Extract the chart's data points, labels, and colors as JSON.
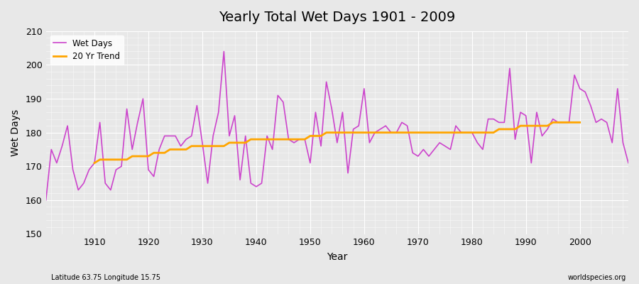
{
  "title": "Yearly Total Wet Days 1901 - 2009",
  "xlabel": "Year",
  "ylabel": "Wet Days",
  "footnote_left": "Latitude 63.75 Longitude 15.75",
  "footnote_right": "worldspecies.org",
  "line_color": "#cc44cc",
  "trend_color": "#ffa500",
  "bg_color": "#e8e8e8",
  "plot_bg_color": "#e8e8e8",
  "ylim": [
    150,
    210
  ],
  "xlim": [
    1901,
    2009
  ],
  "yticks": [
    150,
    160,
    170,
    180,
    190,
    200,
    210
  ],
  "xticks": [
    1910,
    1920,
    1930,
    1940,
    1950,
    1960,
    1970,
    1980,
    1990,
    2000
  ],
  "years": [
    1901,
    1902,
    1903,
    1904,
    1905,
    1906,
    1907,
    1908,
    1909,
    1910,
    1911,
    1912,
    1913,
    1914,
    1915,
    1916,
    1917,
    1918,
    1919,
    1920,
    1921,
    1922,
    1923,
    1924,
    1925,
    1926,
    1927,
    1928,
    1929,
    1930,
    1931,
    1932,
    1933,
    1934,
    1935,
    1936,
    1937,
    1938,
    1939,
    1940,
    1941,
    1942,
    1943,
    1944,
    1945,
    1946,
    1947,
    1948,
    1949,
    1950,
    1951,
    1952,
    1953,
    1954,
    1955,
    1956,
    1957,
    1958,
    1959,
    1960,
    1961,
    1962,
    1963,
    1964,
    1965,
    1966,
    1967,
    1968,
    1969,
    1970,
    1971,
    1972,
    1973,
    1974,
    1975,
    1976,
    1977,
    1978,
    1979,
    1980,
    1981,
    1982,
    1983,
    1984,
    1985,
    1986,
    1987,
    1988,
    1989,
    1990,
    1991,
    1992,
    1993,
    1994,
    1995,
    1996,
    1997,
    1998,
    1999,
    2000,
    2001,
    2002,
    2003,
    2004,
    2005,
    2006,
    2007,
    2008,
    2009
  ],
  "wet_days": [
    160,
    175,
    171,
    176,
    182,
    169,
    163,
    165,
    169,
    171,
    183,
    165,
    163,
    169,
    170,
    187,
    175,
    183,
    190,
    169,
    167,
    175,
    179,
    179,
    179,
    176,
    178,
    179,
    188,
    177,
    165,
    179,
    186,
    204,
    179,
    185,
    166,
    179,
    165,
    164,
    165,
    179,
    175,
    191,
    189,
    178,
    177,
    178,
    178,
    171,
    186,
    176,
    195,
    187,
    177,
    186,
    168,
    181,
    182,
    193,
    177,
    180,
    181,
    182,
    180,
    180,
    183,
    182,
    174,
    173,
    175,
    173,
    175,
    177,
    176,
    175,
    182,
    180,
    180,
    180,
    177,
    175,
    184,
    184,
    183,
    183,
    199,
    178,
    186,
    185,
    171,
    186,
    179,
    181,
    184,
    183,
    183,
    183,
    197,
    193,
    192,
    188,
    183,
    184,
    183,
    177,
    193,
    177,
    171
  ],
  "trend": [
    null,
    null,
    null,
    null,
    null,
    null,
    null,
    null,
    null,
    171,
    172,
    172,
    172,
    172,
    172,
    172,
    173,
    173,
    173,
    173,
    174,
    174,
    174,
    175,
    175,
    175,
    175,
    176,
    176,
    176,
    176,
    176,
    176,
    176,
    177,
    177,
    177,
    177,
    178,
    178,
    178,
    178,
    178,
    178,
    178,
    178,
    178,
    178,
    178,
    179,
    179,
    179,
    180,
    180,
    180,
    180,
    180,
    180,
    180,
    180,
    180,
    180,
    180,
    180,
    180,
    180,
    180,
    180,
    180,
    180,
    180,
    180,
    180,
    180,
    180,
    180,
    180,
    180,
    180,
    180,
    180,
    180,
    180,
    180,
    181,
    181,
    181,
    181,
    182,
    182,
    182,
    182,
    182,
    182,
    183,
    183,
    183,
    183,
    183,
    183,
    null,
    null,
    null,
    null,
    null,
    null,
    null,
    null,
    null
  ]
}
